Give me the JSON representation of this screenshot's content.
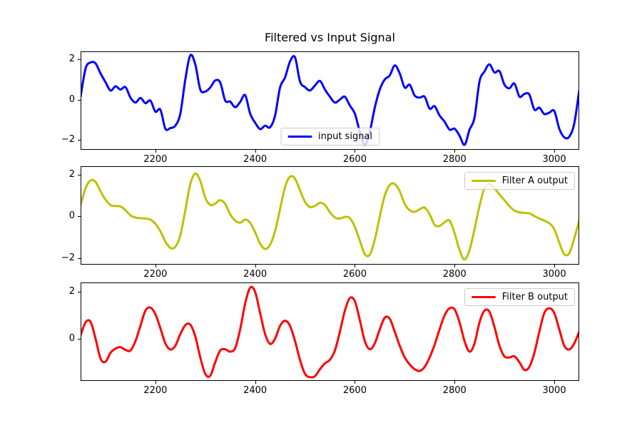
{
  "chart_data": [
    {
      "type": "line",
      "title": "Filtered vs Input Signal",
      "xlabel": "",
      "ylabel": "",
      "xlim": [
        2050,
        3050
      ],
      "ylim": [
        -2.5,
        2.4
      ],
      "xticks": [
        2200,
        2400,
        2600,
        2800,
        3000
      ],
      "yticks": [
        2,
        0,
        -2
      ],
      "grid": false,
      "legend_position": "lower center",
      "x_start": 2050,
      "x_step": 10,
      "series": [
        {
          "name": "input signal",
          "color": "#0000ff",
          "values": [
            0.15,
            1.55,
            1.85,
            1.8,
            1.3,
            0.86,
            0.45,
            0.66,
            0.5,
            0.62,
            0.1,
            -0.15,
            0.08,
            -0.18,
            -0.05,
            -0.6,
            -0.5,
            -1.45,
            -1.42,
            -1.3,
            -0.7,
            1.0,
            2.2,
            1.75,
            0.5,
            0.4,
            0.6,
            0.95,
            0.85,
            -0.05,
            -0.1,
            -0.38,
            -0.12,
            0.22,
            -0.7,
            -1.15,
            -1.47,
            -1.3,
            -1.38,
            -0.8,
            0.6,
            1.1,
            1.9,
            2.1,
            0.9,
            0.62,
            0.45,
            0.7,
            0.93,
            0.5,
            0.14,
            -0.15,
            0.0,
            0.14,
            -0.3,
            -0.7,
            -1.6,
            -2.25,
            -1.6,
            -0.4,
            0.5,
            1.0,
            1.2,
            1.7,
            1.3,
            0.6,
            0.74,
            0.2,
            0.1,
            0.14,
            -0.45,
            -0.33,
            -0.8,
            -1.1,
            -1.5,
            -1.45,
            -1.8,
            -2.25,
            -1.5,
            -0.9,
            0.9,
            1.4,
            1.75,
            1.35,
            1.42,
            0.75,
            0.56,
            0.8,
            0.15,
            0.28,
            0.25,
            -0.5,
            -0.4,
            -0.72,
            -0.65,
            -0.57,
            -1.45,
            -1.88,
            -1.85,
            -1.2,
            0.45
          ]
        }
      ]
    },
    {
      "type": "line",
      "title": "",
      "xlabel": "",
      "ylabel": "",
      "xlim": [
        2050,
        3050
      ],
      "ylim": [
        -2.3,
        2.4
      ],
      "xticks": [
        2200,
        2400,
        2600,
        2800,
        3000
      ],
      "yticks": [
        2,
        0,
        -2
      ],
      "grid": false,
      "legend_position": "upper right",
      "x_start": 2050,
      "x_step": 10,
      "series": [
        {
          "name": "Filter A output",
          "color": "#bfbf00",
          "values": [
            0.55,
            1.35,
            1.72,
            1.65,
            1.2,
            0.8,
            0.55,
            0.5,
            0.48,
            0.3,
            0.05,
            -0.05,
            -0.08,
            -0.1,
            -0.15,
            -0.35,
            -0.7,
            -1.2,
            -1.5,
            -1.45,
            -0.9,
            0.3,
            1.55,
            2.05,
            1.7,
            0.9,
            0.55,
            0.62,
            0.78,
            0.6,
            0.1,
            -0.2,
            -0.3,
            -0.15,
            -0.3,
            -0.75,
            -1.3,
            -1.55,
            -1.35,
            -0.7,
            0.35,
            1.4,
            1.9,
            1.8,
            1.25,
            0.7,
            0.45,
            0.5,
            0.65,
            0.55,
            0.2,
            -0.05,
            -0.1,
            -0.02,
            -0.08,
            -0.5,
            -1.15,
            -1.8,
            -1.82,
            -1.1,
            0.0,
            1.0,
            1.5,
            1.55,
            1.2,
            0.6,
            0.3,
            0.22,
            0.35,
            0.42,
            0.1,
            -0.4,
            -0.45,
            -0.28,
            -0.2,
            -0.8,
            -1.6,
            -2.05,
            -1.6,
            -0.6,
            0.5,
            1.35,
            1.55,
            1.35,
            1.05,
            0.78,
            0.5,
            0.28,
            0.2,
            0.17,
            0.15,
            0.02,
            -0.1,
            -0.2,
            -0.32,
            -0.6,
            -1.25,
            -1.8,
            -1.75,
            -1.05,
            -0.2
          ]
        }
      ]
    },
    {
      "type": "line",
      "title": "",
      "xlabel": "",
      "ylabel": "",
      "xlim": [
        2050,
        3050
      ],
      "ylim": [
        -1.8,
        2.4
      ],
      "xticks": [
        2200,
        2400,
        2600,
        2800,
        3000
      ],
      "yticks": [
        2,
        0
      ],
      "grid": false,
      "legend_position": "upper right",
      "x_start": 2050,
      "x_step": 10,
      "series": [
        {
          "name": "Filter B output",
          "color": "#ff0000",
          "values": [
            0.15,
            0.7,
            0.72,
            0.0,
            -0.85,
            -0.98,
            -0.6,
            -0.42,
            -0.36,
            -0.48,
            -0.5,
            -0.1,
            0.55,
            1.2,
            1.33,
            1.05,
            0.45,
            -0.2,
            -0.46,
            -0.3,
            0.2,
            0.58,
            0.6,
            0.1,
            -0.8,
            -1.5,
            -1.58,
            -1.0,
            -0.5,
            -0.45,
            -0.55,
            -0.4,
            0.4,
            1.5,
            2.18,
            2.0,
            1.1,
            0.2,
            -0.22,
            0.0,
            0.55,
            0.77,
            0.55,
            -0.1,
            -0.9,
            -1.5,
            -1.64,
            -1.6,
            -1.3,
            -1.05,
            -0.9,
            -0.5,
            0.3,
            1.2,
            1.74,
            1.6,
            0.8,
            -0.1,
            -0.45,
            -0.2,
            0.4,
            0.9,
            0.85,
            0.3,
            -0.3,
            -0.8,
            -1.1,
            -1.3,
            -1.38,
            -1.2,
            -0.8,
            -0.25,
            0.4,
            1.0,
            1.3,
            1.25,
            0.7,
            -0.1,
            -0.55,
            -0.2,
            0.7,
            1.2,
            1.15,
            0.5,
            -0.3,
            -0.75,
            -0.8,
            -0.75,
            -1.0,
            -1.33,
            -1.2,
            -0.6,
            0.3,
            1.1,
            1.3,
            1.1,
            0.4,
            -0.3,
            -0.46,
            -0.2,
            0.3
          ]
        }
      ]
    }
  ]
}
